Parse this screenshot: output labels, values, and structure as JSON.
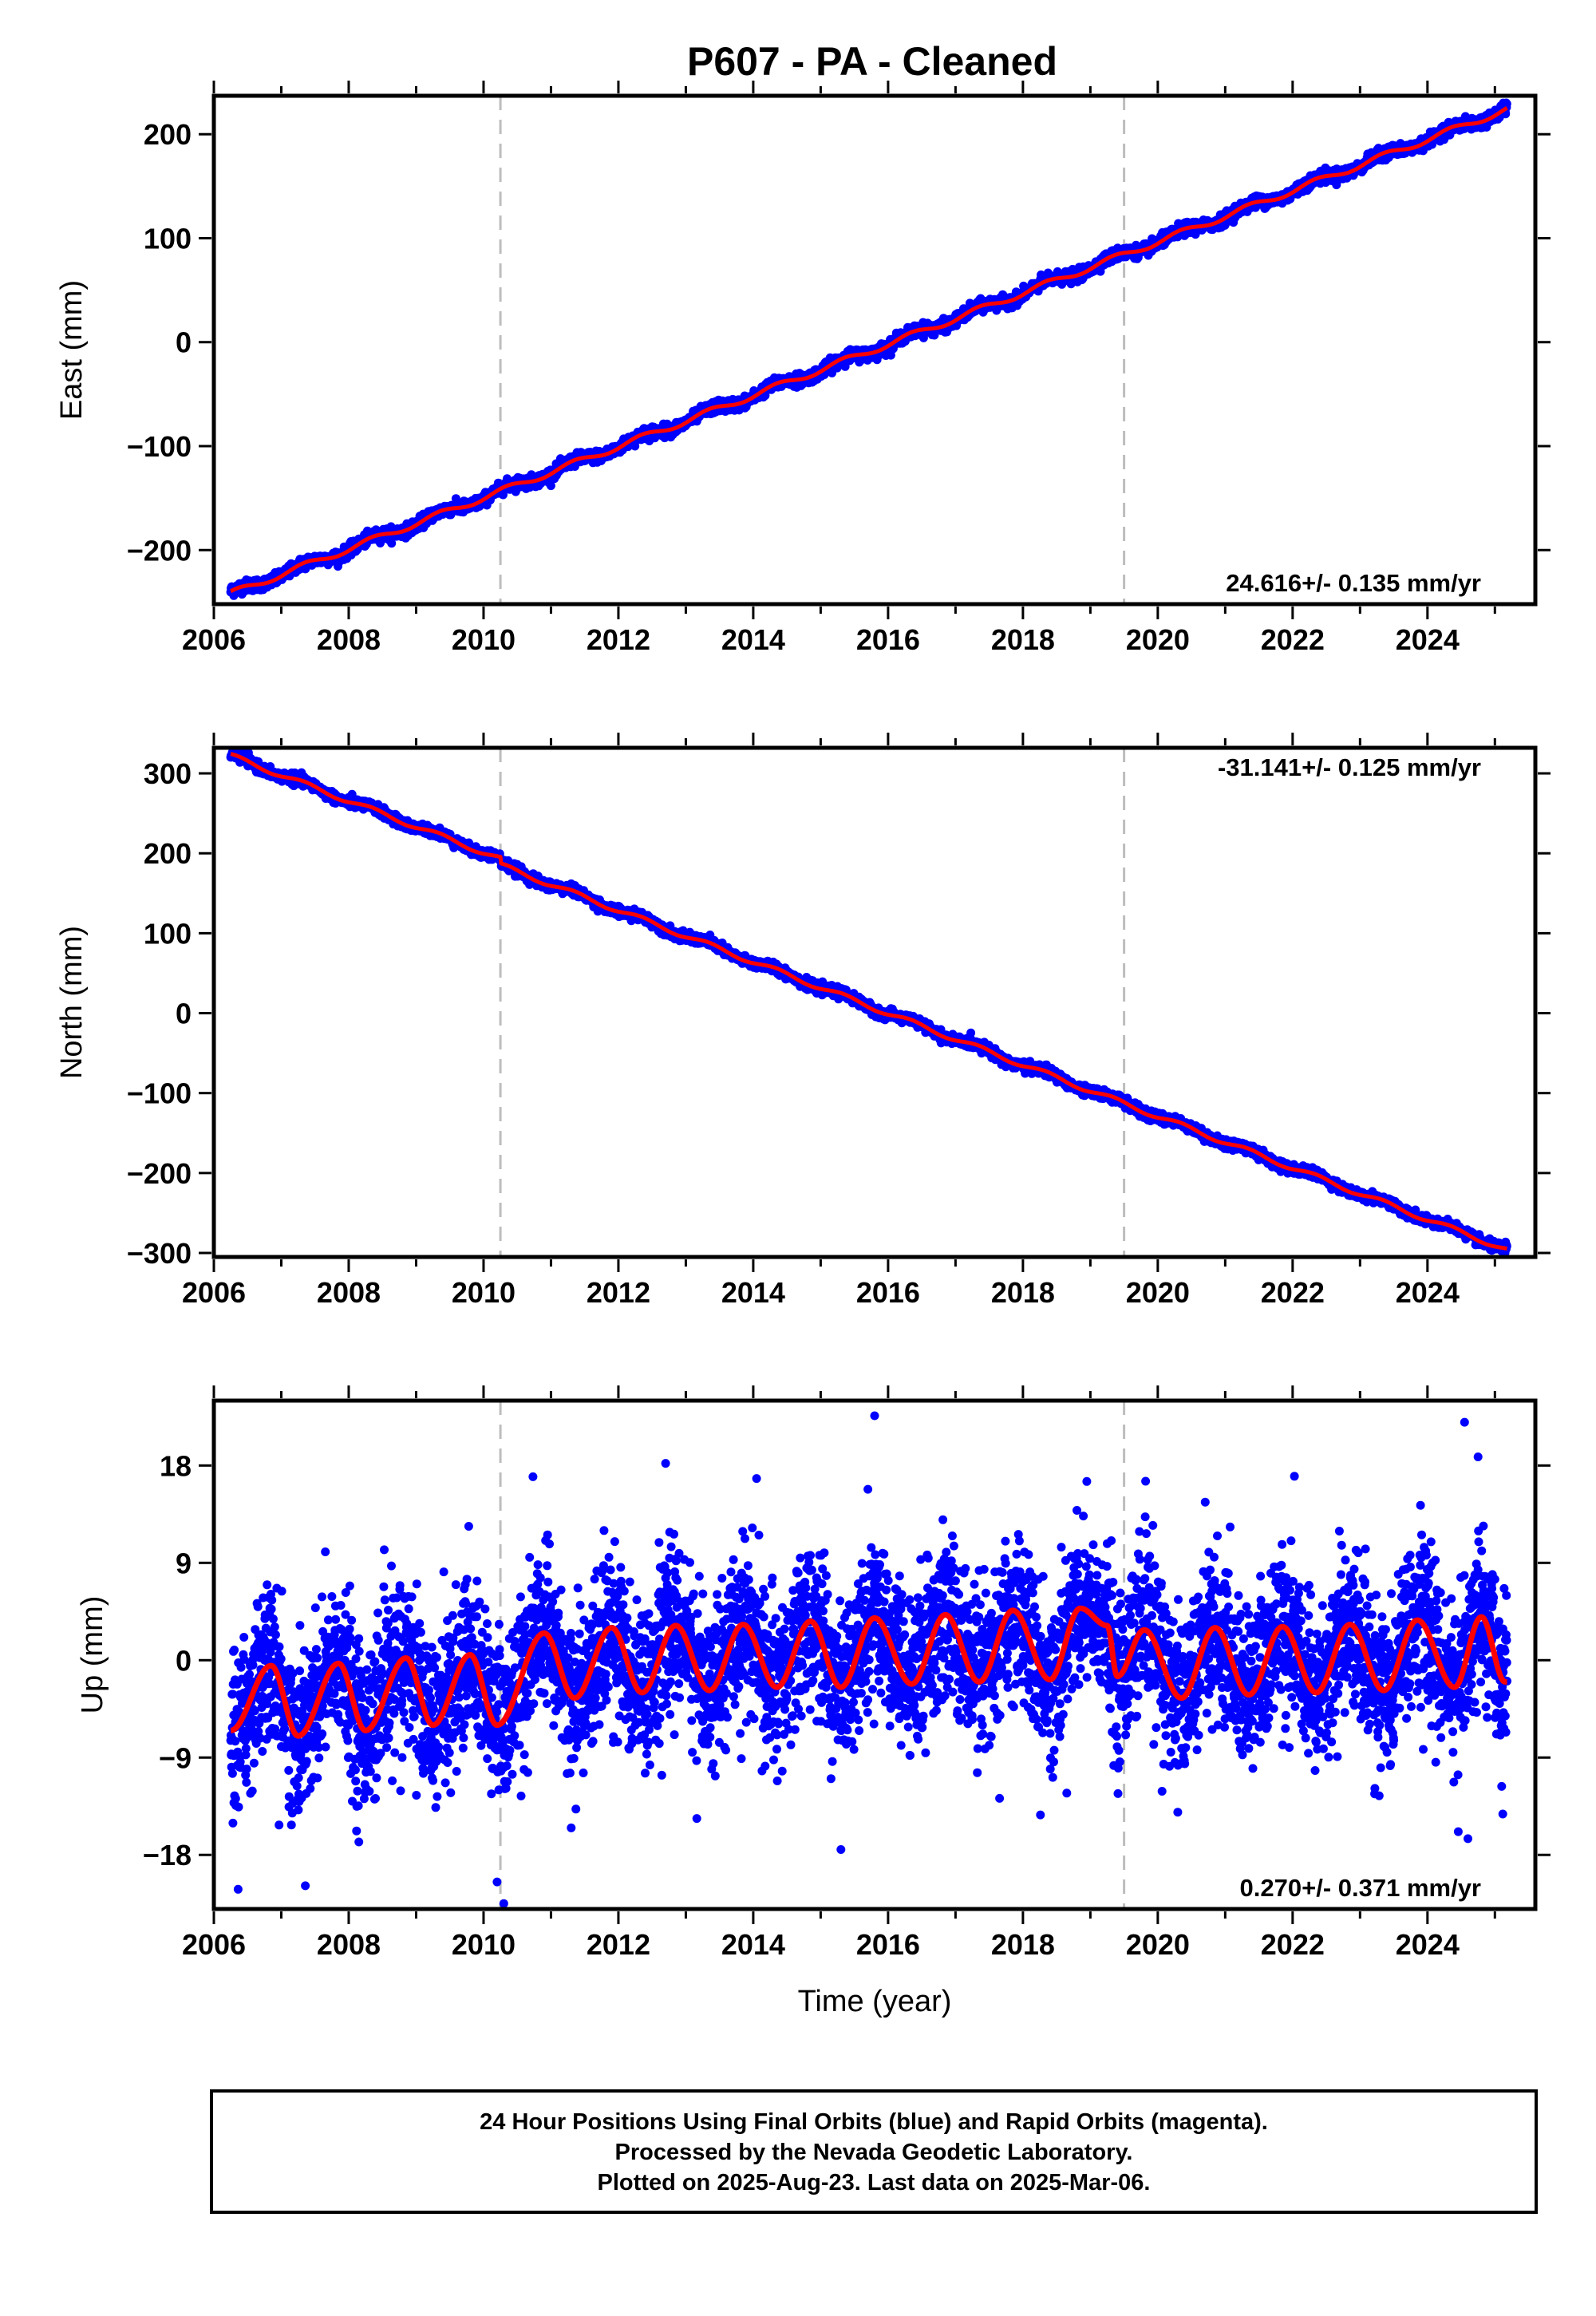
{
  "title": "P607  - PA - Cleaned",
  "colors": {
    "final_points": "#0000ff",
    "model_line": "#ff0000",
    "event_lines": "#bdbdbd",
    "frame": "#000000"
  },
  "chart_data": [
    {
      "type": "scatter",
      "ylabel": "East (mm)",
      "xlabel": "",
      "xlim": [
        2006.0,
        2025.6
      ],
      "ylim": [
        -252,
        237
      ],
      "xticks": [
        2006,
        2008,
        2010,
        2012,
        2014,
        2016,
        2018,
        2020,
        2022,
        2024
      ],
      "yticks": [
        -200,
        -100,
        0,
        100,
        200
      ],
      "ytick_labels": [
        "−200",
        "−100",
        "0",
        "100",
        "200"
      ],
      "data_start": 2006.25,
      "data_end": 2025.18,
      "start_value": -242,
      "end_value": 224,
      "rate_text": "24.616+/- 0.135 mm/yr",
      "rate_position": "bottom-right",
      "event_lines": [
        2010.25,
        2019.5
      ],
      "noise_mm": 2.8,
      "ripple_mm": 3
    },
    {
      "type": "scatter",
      "ylabel": "North (mm)",
      "xlabel": "",
      "xlim": [
        2006.0,
        2025.6
      ],
      "ylim": [
        -305,
        332
      ],
      "xticks": [
        2006,
        2008,
        2010,
        2012,
        2014,
        2016,
        2018,
        2020,
        2022,
        2024
      ],
      "yticks": [
        -300,
        -200,
        -100,
        0,
        100,
        200,
        300
      ],
      "ytick_labels": [
        "−300",
        "−200",
        "−100",
        "0",
        "100",
        "200",
        "300"
      ],
      "data_start": 2006.25,
      "data_end": 2025.18,
      "start_value": 318,
      "end_value": -292,
      "offset_at": 2010.25,
      "offset_mm": -8,
      "rate_text": "-31.141+/- 0.125 mm/yr",
      "rate_position": "top-right",
      "event_lines": [
        2010.25,
        2019.5
      ],
      "noise_mm": 3,
      "ripple_mm": 3
    },
    {
      "type": "scatter",
      "ylabel": "Up (mm)",
      "xlabel": "Time (year)",
      "xlim": [
        2006.0,
        2025.6
      ],
      "ylim": [
        -23,
        24
      ],
      "xticks": [
        2006,
        2008,
        2010,
        2012,
        2014,
        2016,
        2018,
        2020,
        2022,
        2024
      ],
      "yticks": [
        -18,
        -9,
        0,
        9,
        18
      ],
      "ytick_labels": [
        "−18",
        "−9",
        "0",
        "9",
        "18"
      ],
      "data_start": 2006.25,
      "data_end": 2025.18,
      "seasonal_peaks": [
        [
          2006.85,
          -0.5
        ],
        [
          2007.85,
          -0.3
        ],
        [
          2008.85,
          0.2
        ],
        [
          2009.8,
          0.5
        ],
        [
          2010.9,
          2.5
        ],
        [
          2011.9,
          3.0
        ],
        [
          2012.85,
          3.2
        ],
        [
          2013.85,
          3.3
        ],
        [
          2014.85,
          3.6
        ],
        [
          2015.8,
          3.9
        ],
        [
          2016.85,
          4.2
        ],
        [
          2017.85,
          4.6
        ],
        [
          2018.85,
          4.8
        ],
        [
          2019.25,
          3.2
        ],
        [
          2019.8,
          2.8
        ],
        [
          2020.85,
          3.0
        ],
        [
          2021.85,
          3.1
        ],
        [
          2022.85,
          3.3
        ],
        [
          2023.85,
          3.7
        ],
        [
          2024.8,
          4.0
        ]
      ],
      "seasonal_troughs": [
        [
          2006.25,
          -6.5
        ],
        [
          2007.25,
          -7.0
        ],
        [
          2008.25,
          -6.5
        ],
        [
          2009.25,
          -6.0
        ],
        [
          2010.2,
          -6.0
        ],
        [
          2011.35,
          -3.5
        ],
        [
          2012.35,
          -3.0
        ],
        [
          2013.35,
          -2.8
        ],
        [
          2014.35,
          -2.5
        ],
        [
          2015.3,
          -2.5
        ],
        [
          2016.35,
          -2.2
        ],
        [
          2017.35,
          -2.0
        ],
        [
          2018.4,
          -1.8
        ],
        [
          2019.4,
          -1.5
        ],
        [
          2020.35,
          -3.5
        ],
        [
          2021.35,
          -3.2
        ],
        [
          2022.35,
          -3.0
        ],
        [
          2023.35,
          -2.8
        ],
        [
          2024.4,
          -2.5
        ],
        [
          2025.15,
          -2.0
        ]
      ],
      "outliers": [
        [
          2015.8,
          22.6
        ],
        [
          2024.55,
          22.0
        ],
        [
          2024.75,
          18.8
        ],
        [
          2012.7,
          18.2
        ],
        [
          2014.05,
          16.8
        ],
        [
          2015.7,
          15.8
        ],
        [
          2010.2,
          -20.5
        ],
        [
          2010.3,
          -22.5
        ],
        [
          2008.15,
          -16.8
        ],
        [
          2024.6,
          -16.5
        ],
        [
          2015.3,
          -17.5
        ],
        [
          2011.3,
          -15.5
        ]
      ],
      "rate_text": "0.270+/- 0.371 mm/yr",
      "rate_position": "bottom-right",
      "event_lines": [
        2010.25,
        2019.5
      ],
      "noise_mm": 3.6
    }
  ],
  "footer": {
    "line1": "24 Hour Positions Using Final Orbits (blue) and Rapid Orbits (magenta).",
    "line2": "Processed by the Nevada Geodetic Laboratory.",
    "line3": "Plotted on 2025-Aug-23. Last data on 2025-Mar-06."
  }
}
